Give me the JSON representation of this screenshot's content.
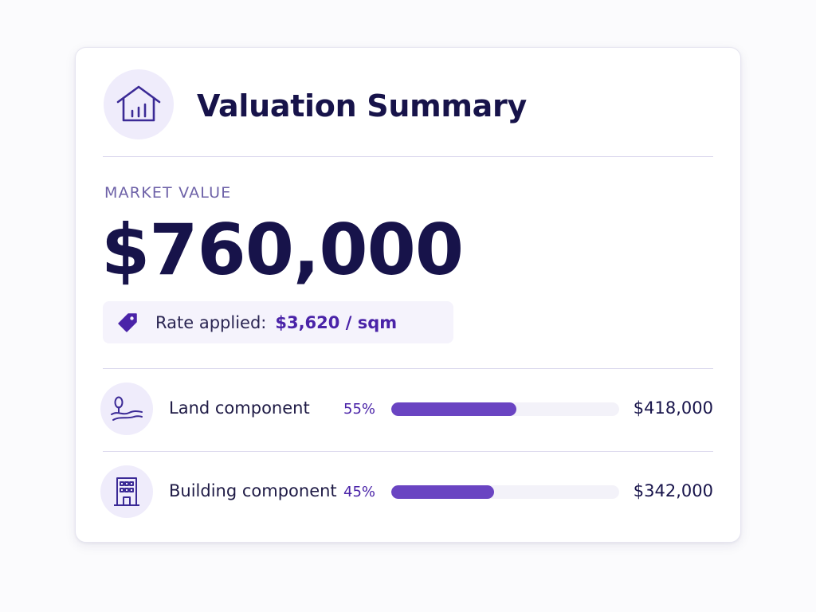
{
  "header": {
    "icon": "house-chart-icon",
    "title": "Valuation Summary"
  },
  "market": {
    "label": "MARKET VALUE",
    "value": "$760,000"
  },
  "rate": {
    "icon": "price-tag-icon",
    "label": "Rate applied:",
    "value": "$3,620 / sqm"
  },
  "components": [
    {
      "icon": "land-tree-icon",
      "label": "Land component",
      "percent_label": "55%",
      "share": 0.55,
      "amount": "$418,000"
    },
    {
      "icon": "building-icon",
      "label": "Building component",
      "percent_label": "45%",
      "share": 0.45,
      "amount": "$342,000"
    }
  ],
  "colors": {
    "accent": "#6a44c2",
    "accent_text": "#4a23a8",
    "heading": "#17134a",
    "icon_bg": "#efecfb"
  }
}
